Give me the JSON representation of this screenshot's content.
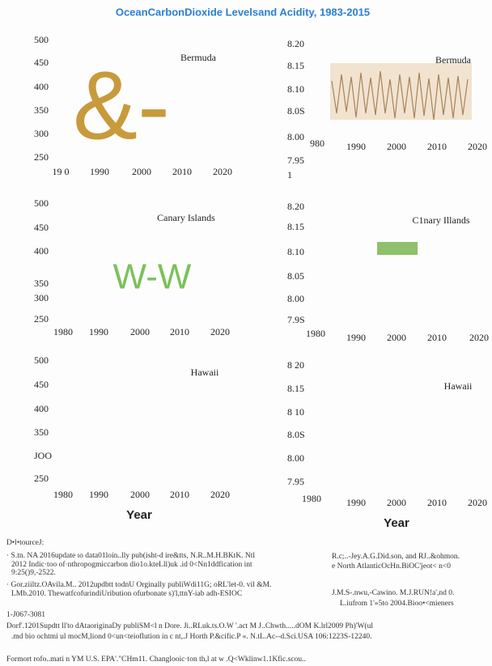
{
  "title": "OceanCarbonDioxide Levelsand Acidity, 1983-2015",
  "panels": [
    {
      "label": "Bermuda",
      "glyph": "&-",
      "yticks": [
        "500",
        "450",
        "400",
        "350",
        "300",
        "250"
      ],
      "xticks": [
        "19 0",
        "1990",
        "2000",
        "2010",
        "2020"
      ]
    },
    {
      "label": "Bermuda",
      "yticks": [
        "8.20",
        "8.15",
        "8.10",
        "8.0S",
        "8.00",
        "7.95",
        "1"
      ],
      "xticks": [
        "980",
        "1990",
        "2000",
        "2010",
        "2020"
      ]
    },
    {
      "label": "Canary Islands",
      "glyph": "W-W",
      "yticks": [
        "500",
        "450",
        "400",
        "350",
        "300",
        "250"
      ],
      "xticks": [
        "1980",
        "1990",
        "2000",
        "2010",
        "2020"
      ]
    },
    {
      "label": "C1nary Illands",
      "yticks": [
        "8.20",
        "8.15",
        "8.10",
        "8.05",
        "8.00",
        "7.9S"
      ],
      "xticks": [
        "1980",
        "1990",
        "2000",
        "2010",
        "2020"
      ]
    },
    {
      "label": "Hawaii",
      "yticks": [
        "500",
        "450",
        "400",
        "350",
        "JOO",
        "250"
      ],
      "xticks": [
        "1980",
        "1990",
        "2000",
        "2010",
        "2020"
      ]
    },
    {
      "label": "Hawaii",
      "yticks": [
        "8 20",
        "8.15",
        "8 10",
        "8.0S",
        "8.00",
        "7.95"
      ],
      "xticks": [
        "1980",
        "1990",
        "2000",
        "2010",
        "2020"
      ]
    }
  ],
  "x_labels": [
    "Year",
    "Year"
  ],
  "sources": [
    "D•l•tourceJ:",
    "· S.tn. NA 2016update ιo data01loin..lly pub(isht-d ire&tts, N.R..M.H.BKtK. Ntl",
    "2012 Indic·too  of·nthropogmiccarbon dio1o.kteLll)uk .id  0<Nn1ddfication int",
    "9:25()9,-2522.",
    "R.c;..-Jey.A.G.Did.son, and RJ..&ohmon.",
    "e North AtlanticOcHn.BiOC'jeot< n<0",
    "· Gor.ziiltz.OAvila.M.. 2012updbtt todnU Orginally publiWdi11G; oRL'let-0. vil &M.",
    "LMb.2010. ThewatfcofurindiUribution ofurbonate s)'l,ttnY-iab  adh-ESIOC",
    "J.M.S-.nwu,-Cawino. M.J.RUN!a',nd 0.",
    "L.iufrom 1'»5to 2004.Bioo•<mieners",
    "1-J067-3081",
    "Dorf'.1201Supdtt  ll'to dAtaoriginaDy publiSM<l n   Dore. Ji..RLuk.ts.O.W '.act  M J..Chwth.....dOM K.lrl2009 Ph)'W(ul",
    ".md bio ochtmi ul mocM,liond  0<un<teioflution in   c nt,.J Horth P.&cific.P «. N.tL.Ac--d.Sci.USA 106:1223S-12240.",
    "Formort rofo..mati n YM U.S. EPA'.\"CHm11.   Changlooic·ton    th,l   at w .Q<Wklinw1.1Kfic.scou.."
  ]
}
